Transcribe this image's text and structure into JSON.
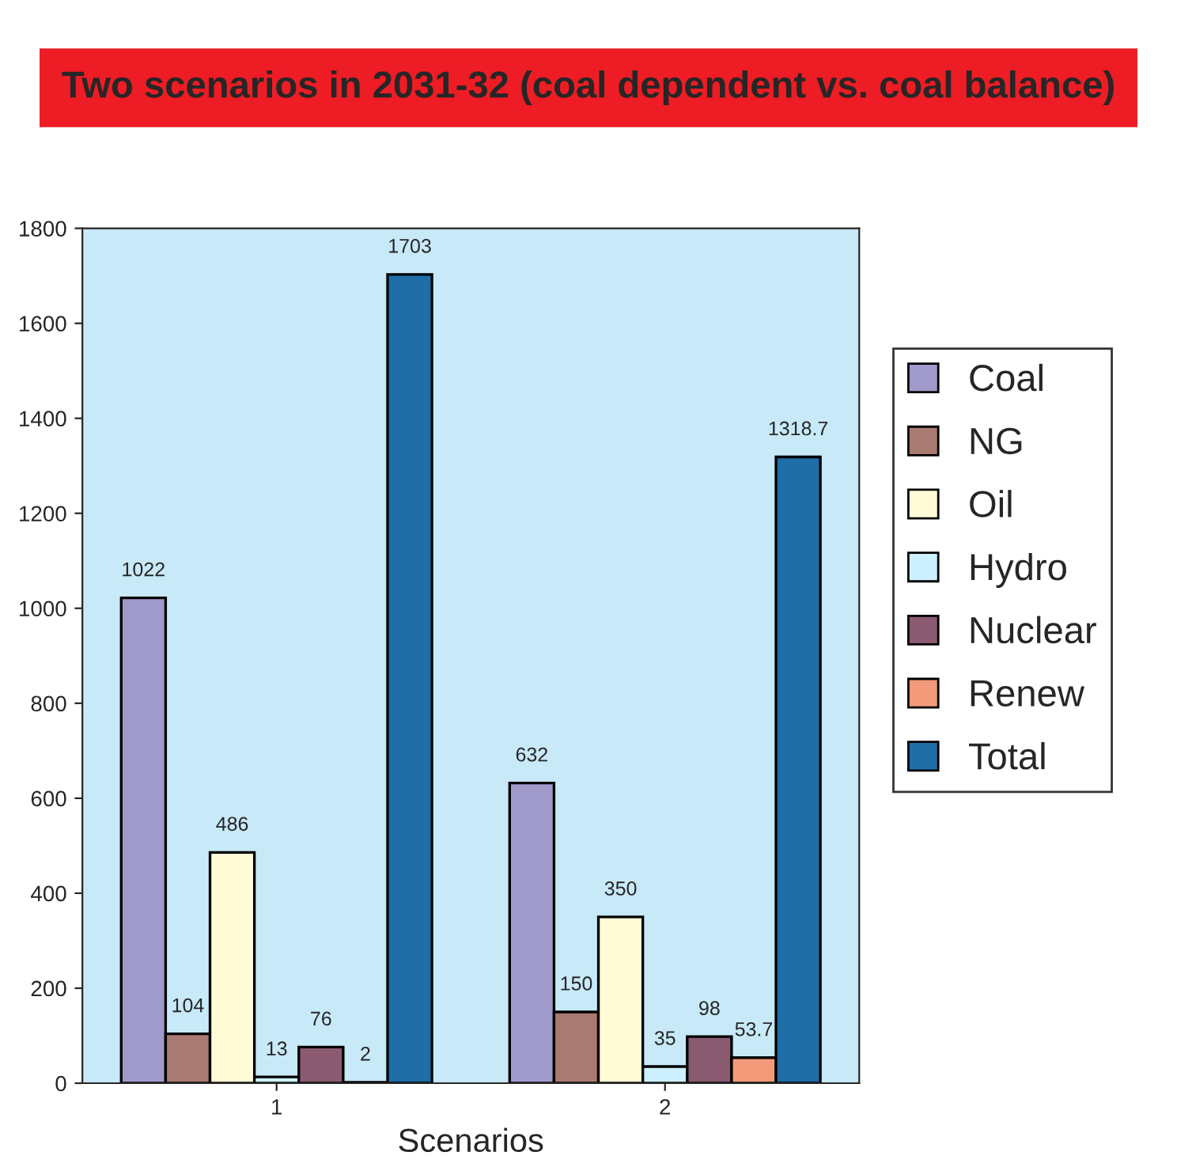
{
  "chart_data": {
    "type": "bar",
    "title": "Two scenarios in 2031-32 (coal dependent vs. coal balance)",
    "xlabel": "Scenarios",
    "categories": [
      "1",
      "2"
    ],
    "series": [
      {
        "name": "Coal",
        "color": "#a09acb",
        "values": [
          1022,
          632
        ]
      },
      {
        "name": "NG",
        "color": "#a97a72",
        "values": [
          104,
          150
        ]
      },
      {
        "name": "Oil",
        "color": "#fffbd6",
        "values": [
          486,
          350
        ]
      },
      {
        "name": "Hydro",
        "color": "#ccf0ff",
        "values": [
          13,
          35
        ]
      },
      {
        "name": "Nuclear",
        "color": "#8a5a70",
        "values": [
          76,
          98
        ]
      },
      {
        "name": "Renew",
        "color": "#f29a7a",
        "values": [
          2,
          53.7
        ]
      },
      {
        "name": "Total",
        "color": "#1f6ea8",
        "values": [
          1703,
          1318.7
        ]
      }
    ],
    "ylim": [
      0,
      1800
    ],
    "yticks": [
      0,
      200,
      400,
      600,
      800,
      1000,
      1200,
      1400,
      1600,
      1800
    ],
    "data_labels": true,
    "grid": false,
    "legend": "right"
  }
}
